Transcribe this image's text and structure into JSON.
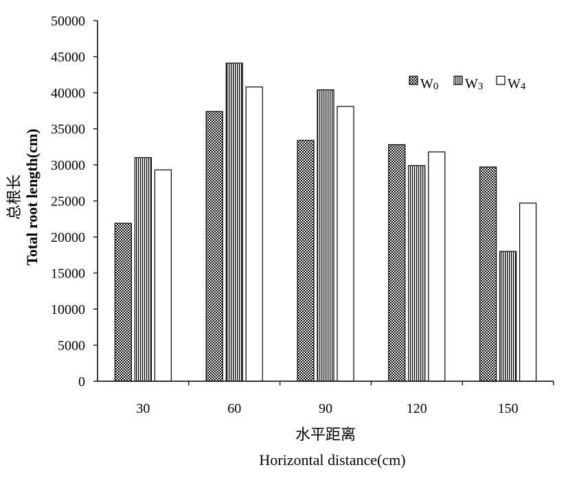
{
  "chart_data": {
    "type": "bar",
    "categories": [
      "30",
      "60",
      "90",
      "120",
      "150"
    ],
    "series": [
      {
        "name": "W0",
        "pattern": "dense-checker",
        "values": [
          21900,
          37400,
          33400,
          32800,
          29700
        ]
      },
      {
        "name": "W3",
        "pattern": "vertical-stripes",
        "values": [
          31000,
          44100,
          40400,
          29900,
          18000
        ]
      },
      {
        "name": "W4",
        "pattern": "white",
        "values": [
          29300,
          40800,
          38100,
          31800,
          24700
        ]
      }
    ],
    "ylim": [
      0,
      50000
    ],
    "yticks": [
      0,
      5000,
      10000,
      15000,
      20000,
      25000,
      30000,
      35000,
      40000,
      45000,
      50000
    ],
    "xlabel_cn": "水平距离",
    "xlabel_en": "Horizontal distance(cm)",
    "ylabel_cn": "总根长",
    "ylabel_en": "Total root length(cm)",
    "legend": {
      "placement": "top-right",
      "entries": [
        {
          "base": "W",
          "sub": "0"
        },
        {
          "base": "W",
          "sub": "3"
        },
        {
          "base": "W",
          "sub": "4"
        }
      ]
    },
    "grid": false,
    "colors": {
      "bar_fill_w4": "#ffffff",
      "stroke": "#000000"
    }
  }
}
